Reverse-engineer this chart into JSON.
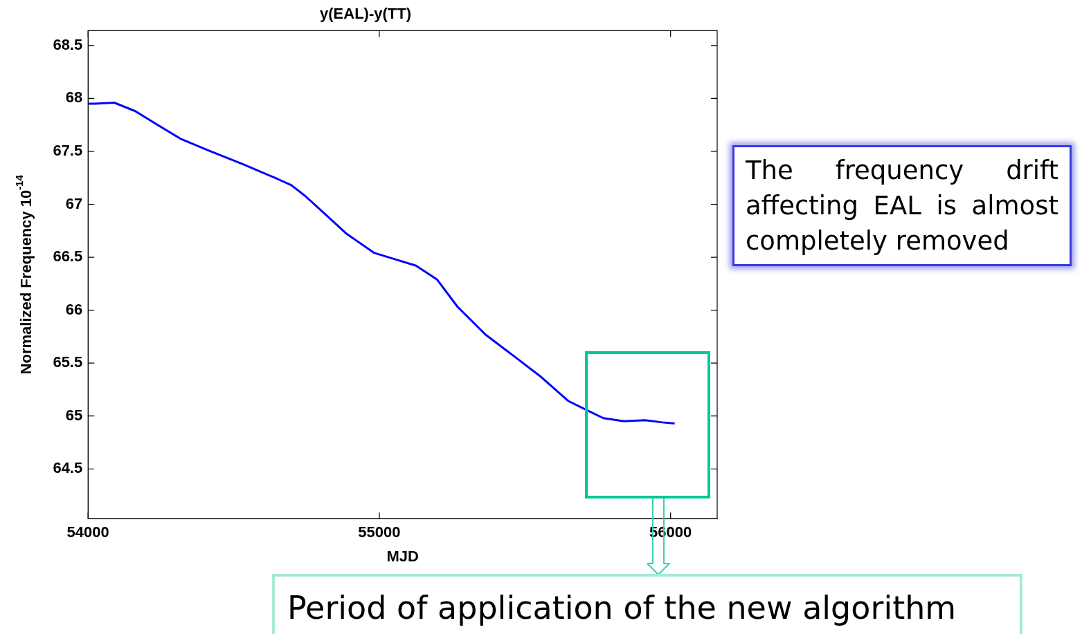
{
  "chart_data": {
    "type": "line",
    "title": "y(EAL)-y(TT)",
    "xlabel": "MJD",
    "ylabel": "Normalized Frequency 10$^{-14}$",
    "x": [
      54000,
      54024,
      54090,
      54162,
      54245,
      54317,
      54412,
      54531,
      54650,
      54698,
      54745,
      54817,
      54888,
      54983,
      55055,
      55126,
      55198,
      55269,
      55364,
      55460,
      55555,
      55650,
      55717,
      55769,
      55840,
      55912,
      55971,
      56014
    ],
    "series": [
      {
        "color": "#0000ff",
        "values": [
          67.95,
          67.95,
          67.96,
          67.88,
          67.74,
          67.62,
          67.51,
          67.38,
          67.24,
          67.18,
          67.08,
          66.9,
          66.72,
          66.54,
          66.48,
          66.42,
          66.29,
          66.03,
          65.77,
          65.57,
          65.37,
          65.14,
          65.05,
          64.98,
          64.95,
          64.96,
          64.94,
          64.93
        ]
      }
    ],
    "xlim": [
      54000,
      56160
    ],
    "xticks": [
      54000,
      55000,
      56000
    ],
    "ylim": [
      64.03,
      68.64
    ],
    "yticks": [
      64.5,
      65,
      65.5,
      66,
      66.5,
      67,
      67.5,
      68,
      68.5
    ],
    "grid": false,
    "legend": false,
    "marker": "none",
    "line_style": "solid",
    "annotations": [
      "The frequency drift affecting EAL is almost completely removed",
      "Period of application of the new algorithm"
    ]
  }
}
